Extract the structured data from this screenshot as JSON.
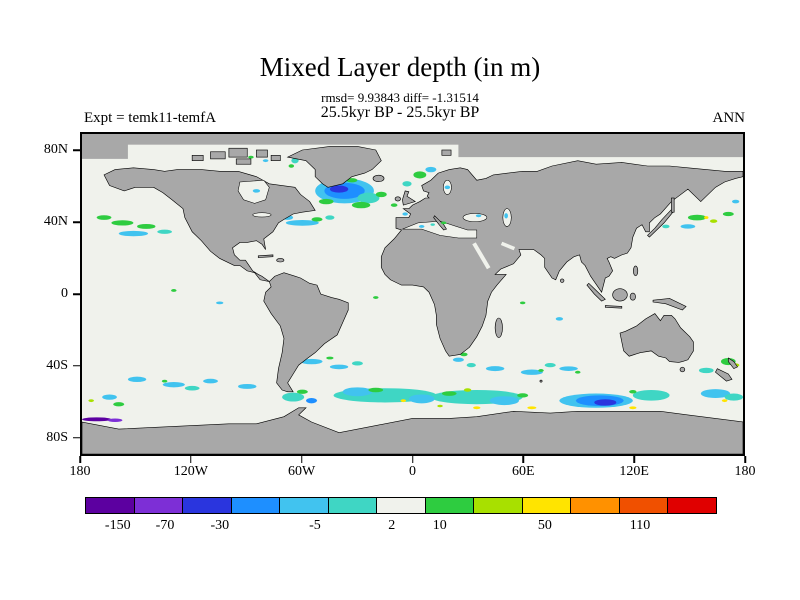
{
  "title": "Mixed Layer depth (in m)",
  "stats_line": "rmsd= 9.93843 diff= -1.31514",
  "period_line": "25.5kyr BP - 25.5kyr BP",
  "expt_label": "Expt = temk11-temfA",
  "season_label": "ANN",
  "chart_data": {
    "type": "heatmap",
    "subtype": "filled-contour anomaly map, equirectangular lat-lon projection",
    "title": "Mixed Layer depth (in m)",
    "stats": {
      "rmsd": 9.93843,
      "diff": -1.31514
    },
    "comparison": "25.5kyr BP - 25.5kyr BP",
    "experiment": "temk11-temfA",
    "season": "ANN",
    "lon_range": [
      -180,
      180
    ],
    "lat_range": [
      -90,
      90
    ],
    "xlabel_ticks": [
      "180",
      "120W",
      "60W",
      "0",
      "60E",
      "120E",
      "180"
    ],
    "xlabel_pos_pct": [
      0,
      16.667,
      33.333,
      50,
      66.667,
      83.333,
      100
    ],
    "ylabel_ticks": [
      "80N",
      "40N",
      "0",
      "40S",
      "80S"
    ],
    "ylabel_pos_pct": [
      5.556,
      27.778,
      50,
      72.222,
      94.444
    ],
    "grid": false,
    "land_color": "#a8a8a8",
    "ocean_neutral_color": "#f0f2ec",
    "colorbar": {
      "tick_labels": [
        "-150",
        "-70",
        "-30",
        "-5",
        "2",
        "10",
        "50",
        "110"
      ],
      "tick_pos_pct": [
        5.2,
        12.7,
        21.4,
        36.5,
        48.7,
        56.3,
        73.0,
        88.1
      ],
      "segment_colors": [
        "#5c00a0",
        "#7d2fd6",
        "#2a35de",
        "#1e8fff",
        "#41c3ef",
        "#3fd6c4",
        "#f0f2ec",
        "#2ecc40",
        "#a8e000",
        "#ffe400",
        "#ff9100",
        "#f05000",
        "#e00000"
      ]
    },
    "anomaly_patches_note": "ellipses in map coords x=lon+180, y=90-lat; [cx,cy,rx,ry,color]; color encodes mixed-layer-depth difference per colorbar",
    "anomaly_patches": [
      [
        143,
        32,
        16,
        7,
        "#41c3ef"
      ],
      [
        143,
        32,
        11,
        4.5,
        "#1e8fff"
      ],
      [
        140,
        31,
        5,
        2,
        "#2a35de"
      ],
      [
        156,
        36,
        6,
        3,
        "#3fd6c4"
      ],
      [
        133,
        38,
        4,
        1.5,
        "#2ecc40"
      ],
      [
        152,
        40,
        5,
        1.8,
        "#2ecc40"
      ],
      [
        163,
        34,
        3,
        1.5,
        "#2ecc40"
      ],
      [
        147,
        26,
        3,
        1.2,
        "#2ecc40"
      ],
      [
        184,
        23,
        3.5,
        2,
        "#2ecc40"
      ],
      [
        190,
        20,
        3,
        1.5,
        "#41c3ef"
      ],
      [
        177,
        28,
        2.5,
        1.5,
        "#3fd6c4"
      ],
      [
        170,
        40,
        1.8,
        1,
        "#2ecc40"
      ],
      [
        176,
        45,
        1.5,
        0.9,
        "#41c3ef"
      ],
      [
        116,
        15,
        2,
        1.5,
        "#3fd6c4"
      ],
      [
        114,
        18,
        1.5,
        1,
        "#2ecc40"
      ],
      [
        92,
        13,
        1.5,
        0.8,
        "#2ecc40"
      ],
      [
        100,
        15,
        1.5,
        0.8,
        "#41c3ef"
      ],
      [
        120,
        50,
        9,
        1.6,
        "#41c3ef"
      ],
      [
        128,
        48,
        3,
        1.2,
        "#2ecc40"
      ],
      [
        135,
        47,
        2.5,
        1.2,
        "#3fd6c4"
      ],
      [
        112,
        47,
        3,
        1.3,
        "#41c3ef"
      ],
      [
        22,
        50,
        6,
        1.5,
        "#2ecc40"
      ],
      [
        35,
        52,
        5,
        1.4,
        "#2ecc40"
      ],
      [
        12,
        47,
        4,
        1.3,
        "#2ecc40"
      ],
      [
        28,
        56,
        8,
        1.5,
        "#41c3ef"
      ],
      [
        45,
        55,
        4,
        1.2,
        "#3fd6c4"
      ],
      [
        335,
        47,
        5,
        1.6,
        "#2ecc40"
      ],
      [
        344,
        49,
        2,
        1,
        "#a8e000"
      ],
      [
        330,
        52,
        4,
        1.2,
        "#41c3ef"
      ],
      [
        352,
        45,
        3,
        1.2,
        "#2ecc40"
      ],
      [
        340,
        47,
        1.2,
        0.8,
        "#ffe400"
      ],
      [
        318,
        52,
        2,
        1,
        "#3fd6c4"
      ],
      [
        356,
        38,
        2,
        1,
        "#41c3ef"
      ],
      [
        50,
        88,
        1.5,
        0.8,
        "#2ecc40"
      ],
      [
        160,
        92,
        1.5,
        0.8,
        "#2ecc40"
      ],
      [
        75,
        95,
        2,
        0.8,
        "#41c3ef"
      ],
      [
        260,
        104,
        2,
        1,
        "#41c3ef"
      ],
      [
        240,
        95,
        1.5,
        0.8,
        "#2ecc40"
      ],
      [
        125,
        128,
        6,
        1.5,
        "#41c3ef"
      ],
      [
        140,
        131,
        5,
        1.3,
        "#41c3ef"
      ],
      [
        150,
        129,
        3,
        1.2,
        "#3fd6c4"
      ],
      [
        135,
        126,
        2,
        0.8,
        "#2ecc40"
      ],
      [
        225,
        132,
        5,
        1.4,
        "#41c3ef"
      ],
      [
        245,
        134,
        6,
        1.5,
        "#41c3ef"
      ],
      [
        265,
        132,
        5,
        1.3,
        "#41c3ef"
      ],
      [
        255,
        130,
        3,
        1.2,
        "#3fd6c4"
      ],
      [
        250,
        133,
        1.5,
        0.8,
        "#2ecc40"
      ],
      [
        270,
        134,
        1.5,
        0.8,
        "#2ecc40"
      ],
      [
        205,
        127,
        3,
        1.2,
        "#41c3ef"
      ],
      [
        212,
        130,
        2.5,
        1.2,
        "#3fd6c4"
      ],
      [
        208,
        124,
        2,
        1,
        "#2ecc40"
      ],
      [
        30,
        138,
        5,
        1.5,
        "#41c3ef"
      ],
      [
        50,
        141,
        6,
        1.5,
        "#41c3ef"
      ],
      [
        70,
        139,
        4,
        1.3,
        "#41c3ef"
      ],
      [
        90,
        142,
        5,
        1.4,
        "#41c3ef"
      ],
      [
        60,
        143,
        4,
        1.3,
        "#3fd6c4"
      ],
      [
        45,
        139,
        1.5,
        0.8,
        "#2ecc40"
      ],
      [
        352,
        128,
        4,
        2,
        "#2ecc40"
      ],
      [
        356,
        130,
        2,
        1,
        "#a8e000"
      ],
      [
        340,
        133,
        4,
        1.5,
        "#3fd6c4"
      ],
      [
        165,
        147,
        28,
        4,
        "#3fd6c4"
      ],
      [
        215,
        148,
        25,
        4,
        "#3fd6c4"
      ],
      [
        150,
        145,
        8,
        2.5,
        "#41c3ef"
      ],
      [
        185,
        149,
        7,
        2.5,
        "#41c3ef"
      ],
      [
        230,
        150,
        8,
        2.5,
        "#41c3ef"
      ],
      [
        160,
        144,
        4,
        1.3,
        "#2ecc40"
      ],
      [
        200,
        146,
        4,
        1.3,
        "#2ecc40"
      ],
      [
        240,
        147,
        3,
        1.2,
        "#2ecc40"
      ],
      [
        210,
        144,
        2,
        1,
        "#a8e000"
      ],
      [
        175,
        150,
        1.5,
        0.8,
        "#ffe400"
      ],
      [
        115,
        148,
        6,
        2.5,
        "#3fd6c4"
      ],
      [
        120,
        145,
        3,
        1.2,
        "#2ecc40"
      ],
      [
        125,
        150,
        3,
        1.5,
        "#1e8fff"
      ],
      [
        280,
        150,
        20,
        4,
        "#41c3ef"
      ],
      [
        282,
        150,
        13,
        3,
        "#1e8fff"
      ],
      [
        285,
        151,
        6,
        1.8,
        "#2a35de"
      ],
      [
        310,
        147,
        10,
        3,
        "#3fd6c4"
      ],
      [
        300,
        145,
        2,
        1,
        "#2ecc40"
      ],
      [
        345,
        146,
        8,
        2.5,
        "#41c3ef"
      ],
      [
        355,
        148,
        5,
        2,
        "#3fd6c4"
      ],
      [
        350,
        150,
        1.5,
        0.8,
        "#ffe400"
      ],
      [
        5,
        150,
        1.5,
        0.8,
        "#a8e000"
      ],
      [
        15,
        148,
        4,
        1.5,
        "#41c3ef"
      ],
      [
        20,
        152,
        3,
        1.2,
        "#2ecc40"
      ],
      [
        215,
        154,
        2,
        0.8,
        "#ffe400"
      ],
      [
        245,
        154,
        2.5,
        0.8,
        "#ffe400"
      ],
      [
        195,
        153,
        1.5,
        0.7,
        "#a8e000"
      ],
      [
        300,
        154,
        2,
        0.8,
        "#ffe400"
      ],
      [
        310,
        157.5,
        9,
        1.1,
        "#ff9100"
      ],
      [
        318,
        157.5,
        3,
        1,
        "#e00000"
      ],
      [
        8,
        160.5,
        8,
        1.1,
        "#5c00a0"
      ],
      [
        18,
        161,
        4,
        1,
        "#7d2fd6"
      ]
    ],
    "inland_sea_patches": [
      [
        185,
        52,
        1.5,
        0.8,
        "#41c3ef"
      ],
      [
        197,
        50,
        1.5,
        0.8,
        "#2ecc40"
      ],
      [
        191,
        51,
        1.2,
        0.7,
        "#3fd6c4"
      ],
      [
        216,
        46,
        1.5,
        0.8,
        "#41c3ef"
      ],
      [
        231,
        46,
        1,
        1.5,
        "#41c3ef"
      ],
      [
        199,
        30,
        1.5,
        1,
        "#41c3ef"
      ],
      [
        95,
        32,
        2,
        1,
        "#41c3ef"
      ]
    ]
  }
}
